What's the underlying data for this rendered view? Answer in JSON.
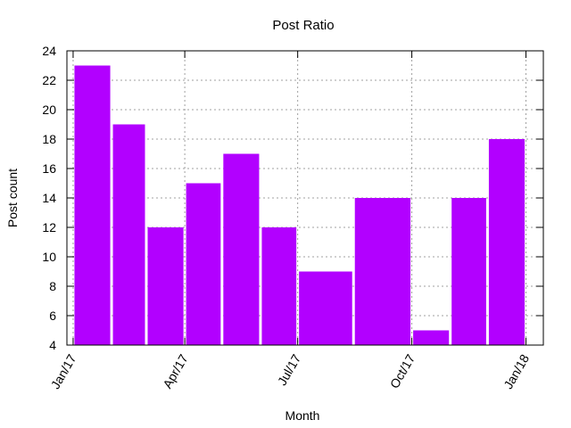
{
  "chart_data": {
    "type": "bar",
    "title": "Post Ratio",
    "xlabel": "Month",
    "ylabel": "Post count",
    "ylim": [
      4,
      24
    ],
    "y_ticks": [
      4,
      6,
      8,
      10,
      12,
      14,
      16,
      18,
      20,
      22,
      24
    ],
    "x_range": [
      "2016-12-27",
      "2018-01-15"
    ],
    "x_ticks": [
      {
        "date": "2017-01-01",
        "label": "Jan/17"
      },
      {
        "date": "2017-04-01",
        "label": "Apr/17"
      },
      {
        "date": "2017-07-01",
        "label": "Jul/17"
      },
      {
        "date": "2017-10-01",
        "label": "Oct/17"
      },
      {
        "date": "2018-01-01",
        "label": "Jan/18"
      }
    ],
    "grid": true,
    "bar_color": "#b200ff",
    "bars": [
      {
        "start": "2017-01-01",
        "end": "2017-02-01",
        "value": 23
      },
      {
        "start": "2017-02-01",
        "end": "2017-03-01",
        "value": 19
      },
      {
        "start": "2017-03-01",
        "end": "2017-04-01",
        "value": 12
      },
      {
        "start": "2017-04-01",
        "end": "2017-05-01",
        "value": 15
      },
      {
        "start": "2017-05-01",
        "end": "2017-06-01",
        "value": 17
      },
      {
        "start": "2017-06-01",
        "end": "2017-07-01",
        "value": 12
      },
      {
        "start": "2017-07-01",
        "end": "2017-08-15",
        "value": 9
      },
      {
        "start": "2017-08-15",
        "end": "2017-10-01",
        "value": 14
      },
      {
        "start": "2017-10-01",
        "end": "2017-11-01",
        "value": 5
      },
      {
        "start": "2017-11-01",
        "end": "2017-12-01",
        "value": 14
      },
      {
        "start": "2017-12-01",
        "end": "2018-01-01",
        "value": 18
      }
    ]
  }
}
